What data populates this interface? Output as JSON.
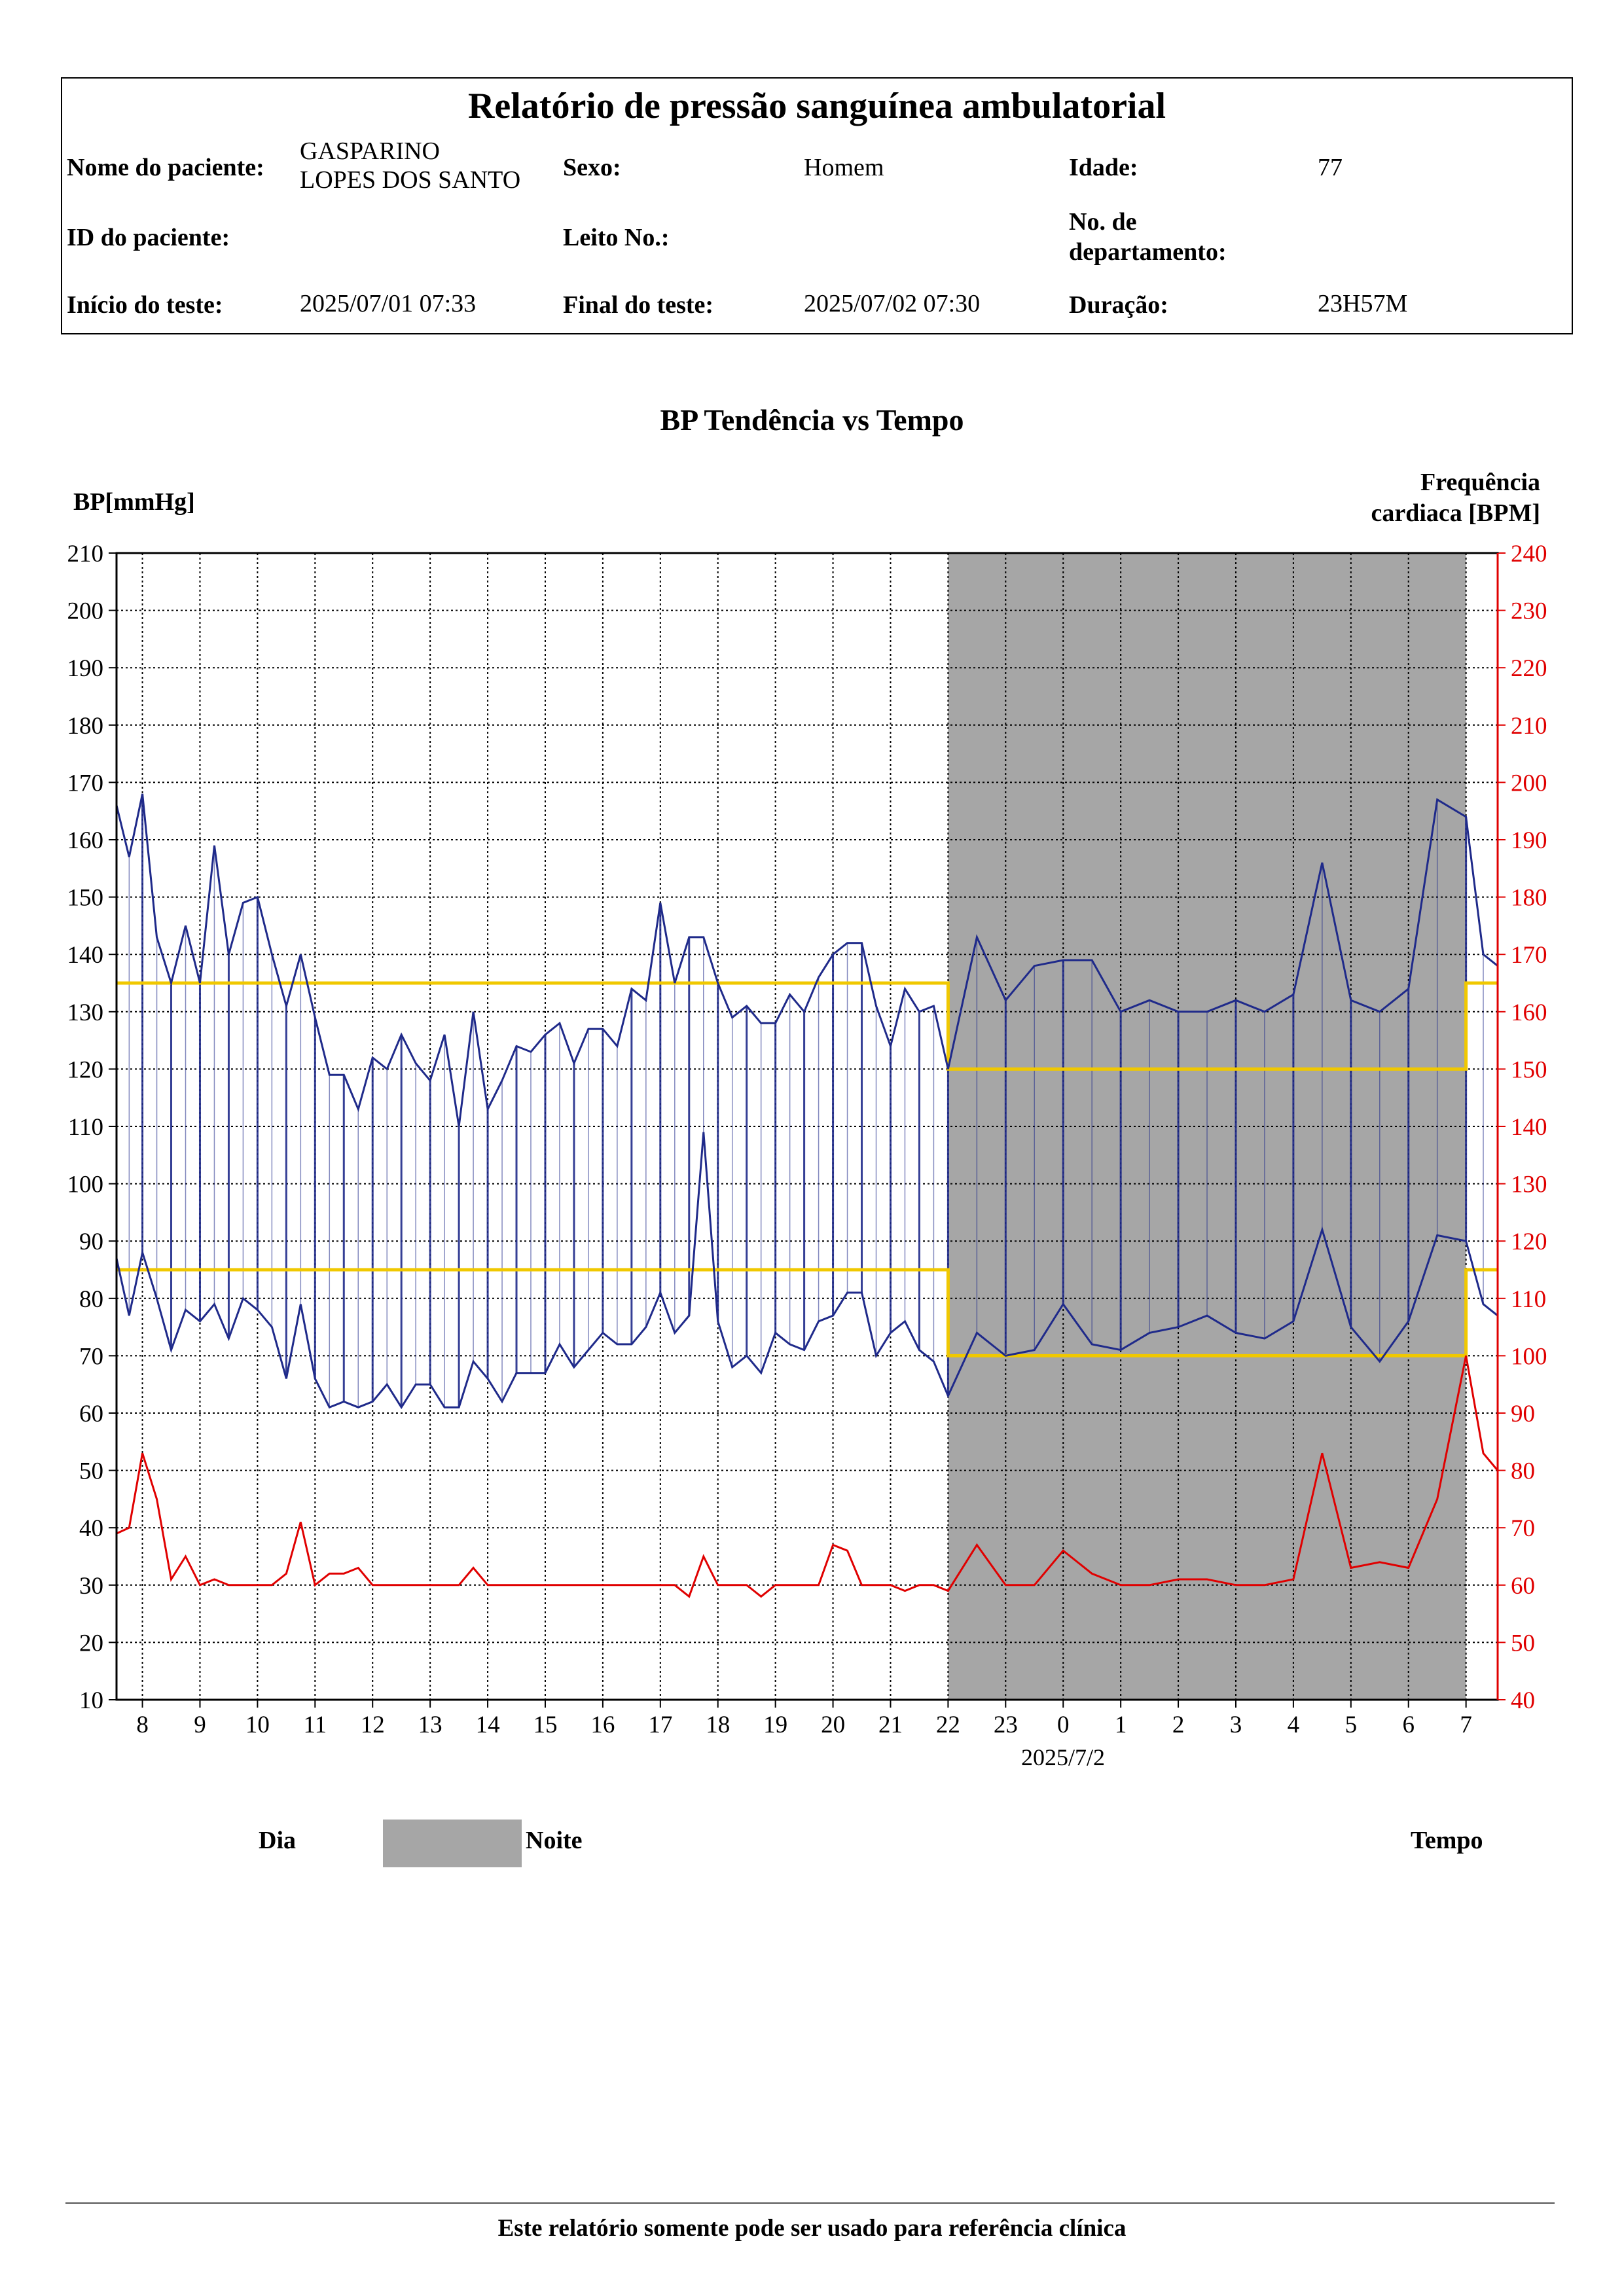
{
  "header": {
    "title": "Relatório de pressão sanguínea ambulatorial",
    "patient_name_label": "Nome do paciente:",
    "patient_name_line1": "GASPARINO",
    "patient_name_line2": "LOPES  DOS SANTO",
    "sex_label": "Sexo:",
    "sex_value": "Homem",
    "age_label": "Idade:",
    "age_value": "77",
    "patient_id_label": "ID do paciente:",
    "bed_label": "Leito No.:",
    "dept_label_line1": "No. de",
    "dept_label_line2": "departamento:",
    "start_label": "Início do teste:",
    "start_value": "2025/07/01 07:33",
    "end_label": "Final do teste:",
    "end_value": "2025/07/02 07:30",
    "duration_label": "Duração:",
    "duration_value": "23H57M"
  },
  "chart_data": {
    "type": "line",
    "title": "BP Tendência vs Tempo",
    "ylabel_left": "BP[mmHg]",
    "ylabel_right_line1": "Frequência",
    "ylabel_right_line2": "cardiaca [BPM]",
    "xlabel": "Tempo",
    "date_label": "2025/7/2",
    "ylim_left": [
      10,
      210
    ],
    "ylim_right": [
      40,
      240
    ],
    "yticks_left": [
      10,
      20,
      30,
      40,
      50,
      60,
      70,
      80,
      90,
      100,
      110,
      120,
      130,
      140,
      150,
      160,
      170,
      180,
      190,
      200,
      210
    ],
    "yticks_right": [
      40,
      50,
      60,
      70,
      80,
      90,
      100,
      110,
      120,
      130,
      140,
      150,
      160,
      170,
      180,
      190,
      200,
      210,
      220,
      230,
      240
    ],
    "xticks": [
      {
        "h": 8,
        "label": "8"
      },
      {
        "h": 9,
        "label": "9"
      },
      {
        "h": 10,
        "label": "10"
      },
      {
        "h": 11,
        "label": "11"
      },
      {
        "h": 12,
        "label": "12"
      },
      {
        "h": 13,
        "label": "13"
      },
      {
        "h": 14,
        "label": "14"
      },
      {
        "h": 15,
        "label": "15"
      },
      {
        "h": 16,
        "label": "16"
      },
      {
        "h": 17,
        "label": "17"
      },
      {
        "h": 18,
        "label": "18"
      },
      {
        "h": 19,
        "label": "19"
      },
      {
        "h": 20,
        "label": "20"
      },
      {
        "h": 21,
        "label": "21"
      },
      {
        "h": 22,
        "label": "22"
      },
      {
        "h": 23,
        "label": "23"
      },
      {
        "h": 24,
        "label": "0"
      },
      {
        "h": 25,
        "label": "1"
      },
      {
        "h": 26,
        "label": "2"
      },
      {
        "h": 27,
        "label": "3"
      },
      {
        "h": 28,
        "label": "4"
      },
      {
        "h": 29,
        "label": "5"
      },
      {
        "h": 30,
        "label": "6"
      },
      {
        "h": 31,
        "label": "7"
      }
    ],
    "x_range_hours": [
      7.55,
      31.55
    ],
    "night_period_hours": [
      22,
      31
    ],
    "thresholds": {
      "day_systolic": 135,
      "day_diastolic": 85,
      "night_systolic": 120,
      "night_diastolic": 70
    },
    "legend": {
      "day": "Dia",
      "night": "Noite"
    },
    "grid": true,
    "colors": {
      "bp": "#1f2a8a",
      "hr": "#e00000",
      "threshold": "#f0c800",
      "night": "#a6a6a6",
      "right_axis": "#e00000"
    },
    "series": [
      {
        "key": "systolic",
        "t": [
          7.55,
          7.77,
          8.0,
          8.25,
          8.5,
          8.75,
          9.0,
          9.25,
          9.5,
          9.75,
          10.0,
          10.25,
          10.5,
          10.75,
          11.0,
          11.25,
          11.5,
          11.75,
          12.0,
          12.25,
          12.5,
          12.75,
          13.0,
          13.25,
          13.5,
          13.75,
          14.0,
          14.25,
          14.5,
          14.75,
          15.0,
          15.25,
          15.5,
          15.75,
          16.0,
          16.25,
          16.5,
          16.75,
          17.0,
          17.25,
          17.5,
          17.75,
          18.0,
          18.25,
          18.5,
          18.75,
          19.0,
          19.25,
          19.5,
          19.75,
          20.0,
          20.25,
          20.5,
          20.75,
          21.0,
          21.25,
          21.5,
          21.75,
          22.0,
          22.5,
          23.0,
          23.5,
          24.0,
          24.5,
          25.0,
          25.5,
          26.0,
          26.5,
          27.0,
          27.5,
          28.0,
          28.5,
          29.0,
          29.5,
          30.0,
          30.5,
          31.0,
          31.3,
          31.55
        ],
        "values": [
          166,
          157,
          168,
          143,
          135,
          145,
          135,
          159,
          140,
          149,
          150,
          140,
          131,
          140,
          129,
          119,
          119,
          113,
          122,
          120,
          126,
          121,
          118,
          126,
          110,
          130,
          113,
          118,
          124,
          123,
          126,
          128,
          121,
          127,
          127,
          124,
          134,
          132,
          149,
          135,
          143,
          143,
          135,
          129,
          131,
          128,
          128,
          133,
          130,
          136,
          140,
          142,
          142,
          131,
          124,
          134,
          130,
          131,
          120,
          143,
          132,
          138,
          139,
          139,
          130,
          132,
          130,
          130,
          132,
          130,
          133,
          156,
          132,
          130,
          134,
          167,
          164,
          140,
          138
        ]
      },
      {
        "key": "diastolic",
        "t": [
          7.55,
          7.77,
          8.0,
          8.25,
          8.5,
          8.75,
          9.0,
          9.25,
          9.5,
          9.75,
          10.0,
          10.25,
          10.5,
          10.75,
          11.0,
          11.25,
          11.5,
          11.75,
          12.0,
          12.25,
          12.5,
          12.75,
          13.0,
          13.25,
          13.5,
          13.75,
          14.0,
          14.25,
          14.5,
          14.75,
          15.0,
          15.25,
          15.5,
          15.75,
          16.0,
          16.25,
          16.5,
          16.75,
          17.0,
          17.25,
          17.5,
          17.75,
          18.0,
          18.25,
          18.5,
          18.75,
          19.0,
          19.25,
          19.5,
          19.75,
          20.0,
          20.25,
          20.5,
          20.75,
          21.0,
          21.25,
          21.5,
          21.75,
          22.0,
          22.5,
          23.0,
          23.5,
          24.0,
          24.5,
          25.0,
          25.5,
          26.0,
          26.5,
          27.0,
          27.5,
          28.0,
          28.5,
          29.0,
          29.5,
          30.0,
          30.5,
          31.0,
          31.3,
          31.55
        ],
        "values": [
          87,
          77,
          88,
          80,
          71,
          78,
          76,
          79,
          73,
          80,
          78,
          75,
          66,
          79,
          66,
          61,
          62,
          61,
          62,
          65,
          61,
          65,
          65,
          61,
          61,
          69,
          66,
          62,
          67,
          67,
          67,
          72,
          68,
          71,
          74,
          72,
          72,
          75,
          81,
          74,
          77,
          109,
          76,
          68,
          70,
          67,
          74,
          72,
          71,
          76,
          77,
          81,
          81,
          70,
          74,
          76,
          71,
          69,
          63,
          74,
          70,
          71,
          79,
          72,
          71,
          74,
          75,
          77,
          74,
          73,
          76,
          92,
          75,
          69,
          76,
          91,
          90,
          79,
          77
        ]
      },
      {
        "key": "heart_rate",
        "t": [
          7.55,
          7.77,
          8.0,
          8.25,
          8.5,
          8.75,
          9.0,
          9.25,
          9.5,
          9.75,
          10.0,
          10.25,
          10.5,
          10.75,
          11.0,
          11.25,
          11.5,
          11.75,
          12.0,
          12.25,
          12.5,
          12.75,
          13.0,
          13.25,
          13.5,
          13.75,
          14.0,
          14.25,
          14.5,
          14.75,
          15.0,
          15.25,
          15.5,
          15.75,
          16.0,
          16.25,
          16.5,
          16.75,
          17.0,
          17.25,
          17.5,
          17.75,
          18.0,
          18.25,
          18.5,
          18.75,
          19.0,
          19.25,
          19.5,
          19.75,
          20.0,
          20.25,
          20.5,
          20.75,
          21.0,
          21.25,
          21.5,
          21.75,
          22.0,
          22.5,
          23.0,
          23.5,
          24.0,
          24.5,
          25.0,
          25.5,
          26.0,
          26.5,
          27.0,
          27.5,
          28.0,
          28.5,
          29.0,
          29.5,
          30.0,
          30.5,
          31.0,
          31.3,
          31.55
        ],
        "values": [
          69,
          70,
          83,
          75,
          61,
          65,
          60,
          61,
          60,
          60,
          60,
          60,
          62,
          71,
          60,
          62,
          62,
          63,
          60,
          60,
          60,
          60,
          60,
          60,
          60,
          63,
          60,
          60,
          60,
          60,
          60,
          60,
          60,
          60,
          60,
          60,
          60,
          60,
          60,
          60,
          58,
          65,
          60,
          60,
          60,
          58,
          60,
          60,
          60,
          60,
          67,
          66,
          60,
          60,
          60,
          59,
          60,
          60,
          59,
          67,
          60,
          60,
          66,
          62,
          60,
          60,
          61,
          61,
          60,
          60,
          61,
          83,
          63,
          64,
          63,
          75,
          100,
          83,
          80
        ]
      }
    ]
  },
  "legend_labels": {
    "day": "Dia",
    "night": "Noite",
    "time": "Tempo"
  },
  "footer": {
    "text": "Este relatório somente pode ser usado para referência clínica"
  }
}
